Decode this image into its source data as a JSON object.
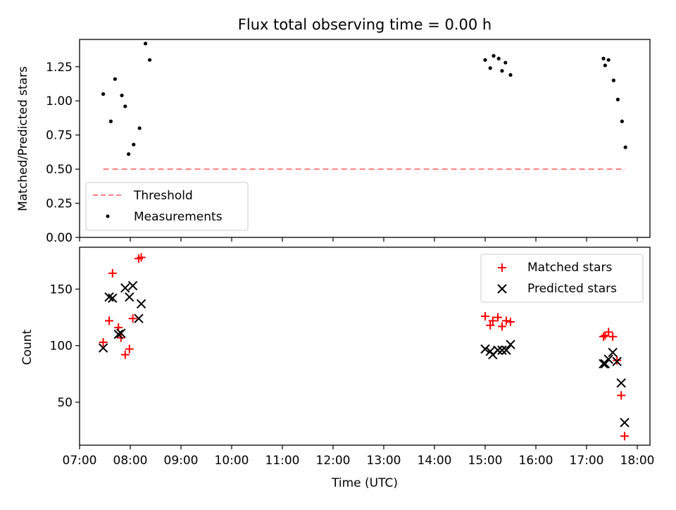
{
  "chart_data": [
    {
      "type": "scatter",
      "title": "Flux total observing time = 0.00 h",
      "xlabel": "",
      "ylabel": "Matched/Predicted stars",
      "ylim": [
        0,
        1.45
      ],
      "xlim": [
        "07:00",
        "18:15"
      ],
      "yticks": [
        "0.00",
        "0.25",
        "0.50",
        "0.75",
        "1.00",
        "1.25"
      ],
      "legend_position": "lower-left",
      "series": [
        {
          "name": "Threshold",
          "style": "dashed-line",
          "color": "#ff7f7f",
          "points": [
            {
              "x": "07:28",
              "y": 0.5
            },
            {
              "x": "17:46",
              "y": 0.5
            }
          ]
        },
        {
          "name": "Measurements",
          "style": "dot",
          "color": "#000000",
          "points": [
            {
              "x": "07:28",
              "y": 1.05
            },
            {
              "x": "07:37",
              "y": 0.85
            },
            {
              "x": "07:42",
              "y": 1.16
            },
            {
              "x": "07:50",
              "y": 1.04
            },
            {
              "x": "07:54",
              "y": 0.96
            },
            {
              "x": "07:58",
              "y": 0.61
            },
            {
              "x": "08:04",
              "y": 0.68
            },
            {
              "x": "08:11",
              "y": 0.8
            },
            {
              "x": "08:18",
              "y": 1.42
            },
            {
              "x": "08:23",
              "y": 1.3
            },
            {
              "x": "15:00",
              "y": 1.3
            },
            {
              "x": "15:06",
              "y": 1.24
            },
            {
              "x": "15:10",
              "y": 1.33
            },
            {
              "x": "15:16",
              "y": 1.31
            },
            {
              "x": "15:20",
              "y": 1.22
            },
            {
              "x": "15:24",
              "y": 1.28
            },
            {
              "x": "15:30",
              "y": 1.19
            },
            {
              "x": "17:20",
              "y": 1.31
            },
            {
              "x": "17:22",
              "y": 1.26
            },
            {
              "x": "17:26",
              "y": 1.3
            },
            {
              "x": "17:32",
              "y": 1.15
            },
            {
              "x": "17:37",
              "y": 1.01
            },
            {
              "x": "17:42",
              "y": 0.85
            },
            {
              "x": "17:46",
              "y": 0.66
            }
          ]
        }
      ]
    },
    {
      "type": "scatter",
      "title": "",
      "xlabel": "Time (UTC)",
      "ylabel": "Count",
      "ylim": [
        12,
        187
      ],
      "xlim": [
        "07:00",
        "18:15"
      ],
      "yticks": [
        "50",
        "100",
        "150"
      ],
      "xticks": [
        "07:00",
        "08:00",
        "09:00",
        "10:00",
        "11:00",
        "12:00",
        "13:00",
        "14:00",
        "15:00",
        "16:00",
        "17:00",
        "18:00"
      ],
      "legend_position": "top-right",
      "series": [
        {
          "name": "Matched stars",
          "style": "plus",
          "color": "#ff0000",
          "points": [
            {
              "x": "07:28",
              "y": 103
            },
            {
              "x": "07:35",
              "y": 122
            },
            {
              "x": "07:39",
              "y": 164
            },
            {
              "x": "07:46",
              "y": 116
            },
            {
              "x": "07:49",
              "y": 107
            },
            {
              "x": "07:54",
              "y": 92
            },
            {
              "x": "07:59",
              "y": 97
            },
            {
              "x": "08:03",
              "y": 124
            },
            {
              "x": "08:10",
              "y": 177
            },
            {
              "x": "08:13",
              "y": 178
            },
            {
              "x": "15:00",
              "y": 126
            },
            {
              "x": "15:06",
              "y": 118
            },
            {
              "x": "15:09",
              "y": 122
            },
            {
              "x": "15:15",
              "y": 125
            },
            {
              "x": "15:20",
              "y": 117
            },
            {
              "x": "15:25",
              "y": 122
            },
            {
              "x": "15:30",
              "y": 121
            },
            {
              "x": "17:20",
              "y": 108
            },
            {
              "x": "17:22",
              "y": 109
            },
            {
              "x": "17:26",
              "y": 112
            },
            {
              "x": "17:31",
              "y": 108
            },
            {
              "x": "17:36",
              "y": 87
            },
            {
              "x": "17:41",
              "y": 56
            },
            {
              "x": "17:45",
              "y": 20
            }
          ]
        },
        {
          "name": "Predicted stars",
          "style": "x",
          "color": "#000000",
          "points": [
            {
              "x": "07:28",
              "y": 98
            },
            {
              "x": "07:35",
              "y": 143
            },
            {
              "x": "07:39",
              "y": 142
            },
            {
              "x": "07:46",
              "y": 110
            },
            {
              "x": "07:49",
              "y": 111
            },
            {
              "x": "07:54",
              "y": 151
            },
            {
              "x": "07:59",
              "y": 143
            },
            {
              "x": "08:03",
              "y": 153
            },
            {
              "x": "08:10",
              "y": 124
            },
            {
              "x": "08:13",
              "y": 137
            },
            {
              "x": "15:00",
              "y": 97
            },
            {
              "x": "15:06",
              "y": 95
            },
            {
              "x": "15:09",
              "y": 92
            },
            {
              "x": "15:15",
              "y": 96
            },
            {
              "x": "15:20",
              "y": 96
            },
            {
              "x": "15:25",
              "y": 96
            },
            {
              "x": "15:30",
              "y": 101
            },
            {
              "x": "17:20",
              "y": 84
            },
            {
              "x": "17:22",
              "y": 84
            },
            {
              "x": "17:26",
              "y": 88
            },
            {
              "x": "17:31",
              "y": 94
            },
            {
              "x": "17:36",
              "y": 86
            },
            {
              "x": "17:41",
              "y": 67
            },
            {
              "x": "17:45",
              "y": 32
            }
          ]
        }
      ]
    }
  ]
}
